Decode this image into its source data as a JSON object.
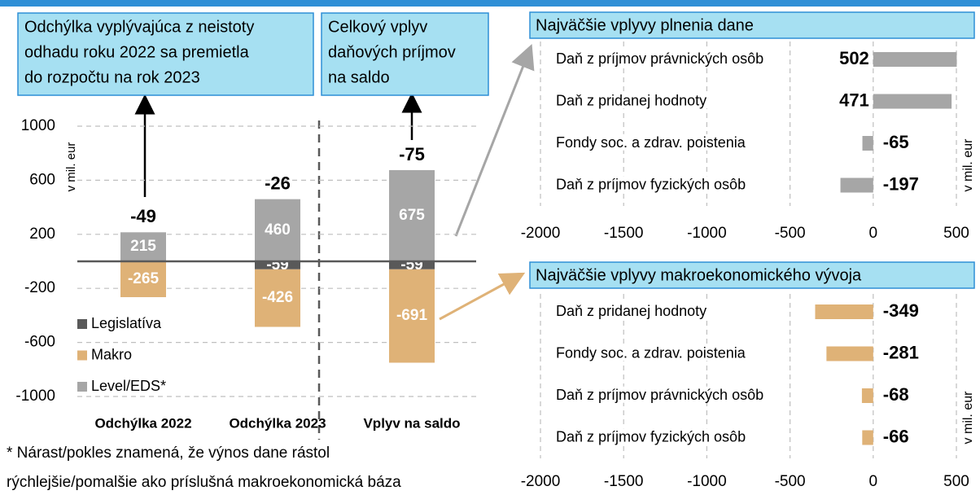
{
  "chart_data": [
    {
      "type": "bar",
      "stacked": true,
      "categories": [
        "Odchýlka 2022",
        "Odchýlka 2023",
        "Vplyv na saldo"
      ],
      "series": [
        {
          "name": "Legislatíva",
          "color": "#595959",
          "values": [
            null,
            -59,
            -59
          ]
        },
        {
          "name": "Makro",
          "color": "#dfb277",
          "values": [
            -265,
            -426,
            -691
          ]
        },
        {
          "name": "Level/EDS*",
          "color": "#a6a6a6",
          "values": [
            215,
            460,
            675
          ]
        }
      ],
      "totals": [
        -49,
        -26,
        -75
      ],
      "ylim": [
        -1000,
        1000
      ],
      "yticks": [
        -1000,
        -600,
        -200,
        200,
        600,
        1000
      ],
      "ylabel": "v mil. eur",
      "grid": true,
      "annotations": [
        {
          "lines": [
            "Odchýlka vyplývajúca z neistoty",
            "odhadu roku 2022 sa premietla",
            "do rozpočtu na rok 2023"
          ]
        },
        {
          "lines": [
            "Celkový vplyv",
            "daňových príjmov",
            "na saldo"
          ]
        }
      ]
    },
    {
      "type": "barh",
      "title": "Najväčšie vplyvy plnenia dane",
      "categories": [
        "Daň z príjmov právnických osôb",
        "Daň z pridanej hodnoty",
        "Fondy soc. a zdrav. poistenia",
        "Daň z príjmov fyzických osôb"
      ],
      "values": [
        502,
        471,
        -65,
        -197
      ],
      "color": "#a6a6a6",
      "xlim": [
        -2000,
        500
      ],
      "xticks": [
        -2000,
        -1500,
        -1000,
        -500,
        0,
        500
      ],
      "ylabel": "v mil. eur",
      "grid": true
    },
    {
      "type": "barh",
      "title": "Najväčšie vplyvy makroekonomického vývoja",
      "categories": [
        "Daň z pridanej hodnoty",
        "Fondy soc. a zdrav. poistenia",
        "Daň z príjmov právnických osôb",
        "Daň z príjmov fyzických osôb"
      ],
      "values": [
        -349,
        -281,
        -68,
        -66
      ],
      "color": "#dfb277",
      "xlim": [
        -2000,
        500
      ],
      "xticks": [
        -2000,
        -1500,
        -1000,
        -500,
        0,
        500
      ],
      "ylabel": "v mil. eur",
      "grid": true
    }
  ],
  "footnote": [
    "* Nárast/pokles znamená, že výnos dane rástol",
    "rýchlejšie/pomalšie ako príslušná makroekonomická báza"
  ]
}
